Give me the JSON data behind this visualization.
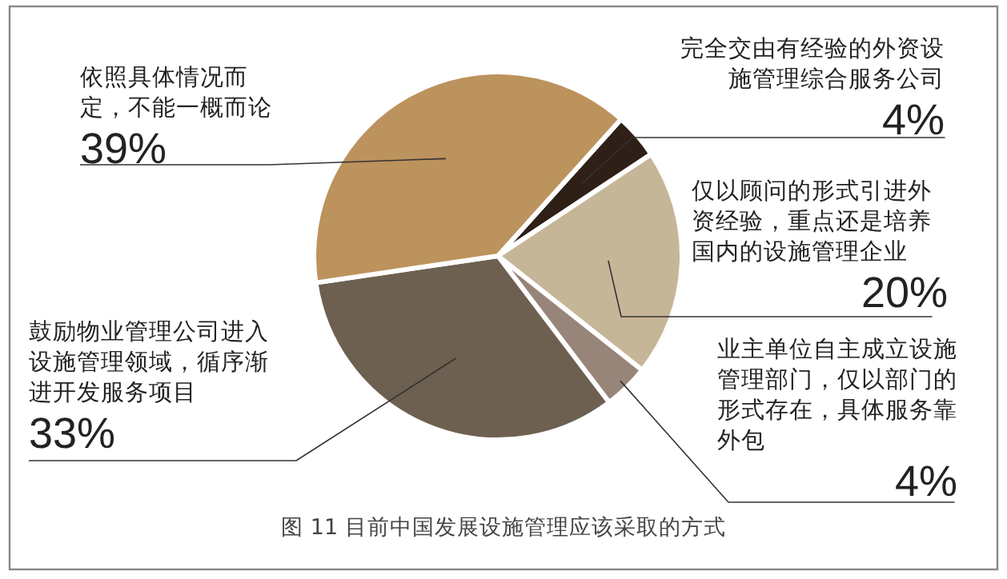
{
  "chart_data": {
    "type": "pie",
    "categories": [
      "完全交由有经验的外资设施管理综合服务公司",
      "仅以顾问的形式引进外资经验，重点还是培养国内的设施管理企业",
      "业主单位自主成立设施管理部门，仅以部门的形式存在，具体服务靠外包",
      "鼓励物业管理公司进入设施管理领域，循序渐进开发服务项目",
      "依照具体情况而定，不能一概而论"
    ],
    "values": [
      4,
      20,
      4,
      33,
      39
    ],
    "colors": [
      "#2e1f17",
      "#c6b698",
      "#98857a",
      "#6d6050",
      "#bc925d"
    ],
    "value_labels": [
      "4%",
      "20%",
      "4%",
      "33%",
      "39%"
    ],
    "annotations": [
      "图 11  目前中国发展设施管理应该采取的方式"
    ]
  }
}
